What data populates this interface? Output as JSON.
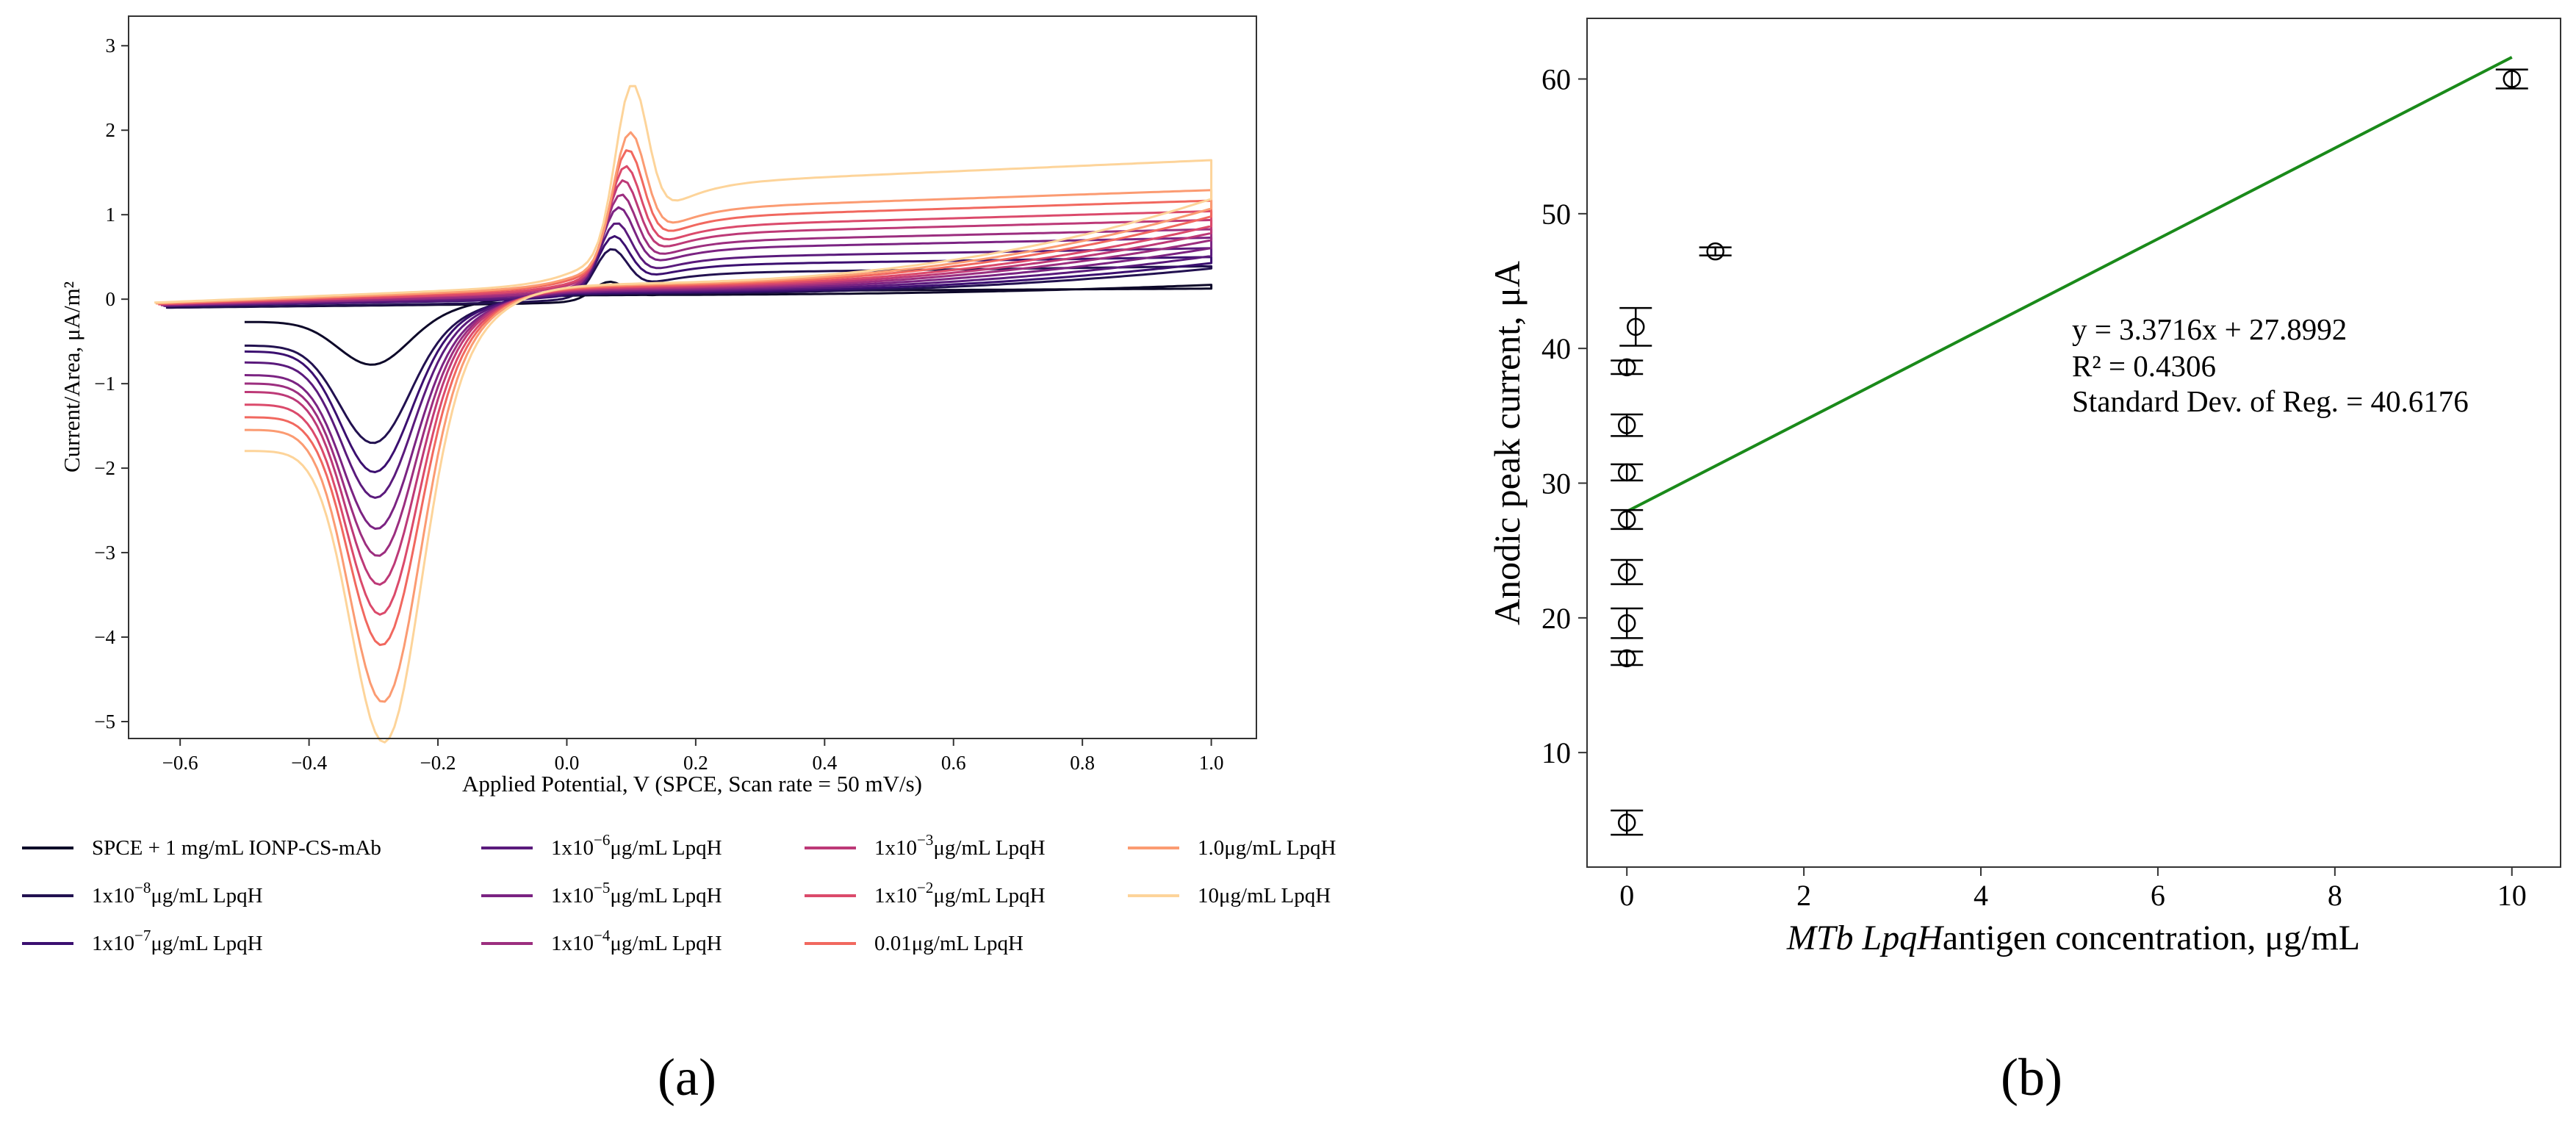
{
  "chart_data": [
    {
      "panel": "(a)",
      "type": "line",
      "xlabel": "Applied Potential, V (SPCE, Scan rate = 50 mV/s)",
      "ylabel": "Current/Area, μA/m²",
      "xlim": [
        -0.68,
        1.07
      ],
      "ylim": [
        -5.2,
        3.35
      ],
      "x_ticks": [
        -0.6,
        -0.4,
        -0.2,
        0.0,
        0.2,
        0.4,
        0.6,
        0.8,
        1.0
      ],
      "x_tick_labels": [
        "−0.6",
        "−0.4",
        "−0.2",
        "0.0",
        "0.2",
        "0.4",
        "0.6",
        "0.8",
        "1.0"
      ],
      "y_ticks": [
        -5,
        -4,
        -3,
        -2,
        -1,
        0,
        1,
        2,
        3
      ],
      "y_tick_labels": [
        "−5",
        "−4",
        "−3",
        "−2",
        "−1",
        "0",
        "1",
        "2",
        "3"
      ],
      "grid": false,
      "legend_position": "below",
      "series": [
        {
          "legend": {
            "pre": "SPCE + 1 mg/mL IONP-CS-mAb",
            "exp": "",
            "post": ""
          },
          "color": "#0d0829",
          "anodic_peak": 0.35,
          "cathodic_peak": -0.7,
          "reverse_start": -0.27,
          "forward_start": -0.1,
          "right_end": 0.22
        },
        {
          "legend": {
            "pre": "1x10",
            "exp": "−8",
            "post": "μg/mL LpqH"
          },
          "color": "#221150",
          "anodic_peak": 0.85,
          "cathodic_peak": -1.55,
          "reverse_start": -0.55,
          "forward_start": -0.1,
          "right_end": 0.4
        },
        {
          "legend": {
            "pre": "1x10",
            "exp": "−7",
            "post": "μg/mL LpqH"
          },
          "color": "#3b0f70",
          "anodic_peak": 1.0,
          "cathodic_peak": -1.88,
          "reverse_start": -0.62,
          "forward_start": -0.08,
          "right_end": 0.45
        },
        {
          "legend": {
            "pre": "1x10",
            "exp": "−6",
            "post": "μg/mL LpqH"
          },
          "color": "#5a1a7c",
          "anodic_peak": 1.18,
          "cathodic_peak": -2.15,
          "reverse_start": -0.75,
          "forward_start": -0.08,
          "right_end": 0.52
        },
        {
          "legend": {
            "pre": "1x10",
            "exp": "−5",
            "post": "μg/mL LpqH"
          },
          "color": "#7b2382",
          "anodic_peak": 1.38,
          "cathodic_peak": -2.48,
          "reverse_start": -0.9,
          "forward_start": -0.07,
          "right_end": 0.6
        },
        {
          "legend": {
            "pre": "1x10",
            "exp": "−4",
            "post": "μg/mL LpqH"
          },
          "color": "#9c2e7f",
          "anodic_peak": 1.55,
          "cathodic_peak": -2.78,
          "reverse_start": -1.0,
          "forward_start": -0.07,
          "right_end": 0.68
        },
        {
          "legend": {
            "pre": "1x10",
            "exp": "−3",
            "post": "μg/mL LpqH"
          },
          "color": "#bd3977",
          "anodic_peak": 1.72,
          "cathodic_peak": -3.1,
          "reverse_start": -1.1,
          "forward_start": -0.06,
          "right_end": 0.75
        },
        {
          "legend": {
            "pre": "1x10",
            "exp": "−2",
            "post": "μg/mL LpqH"
          },
          "color": "#db4a6b",
          "anodic_peak": 1.9,
          "cathodic_peak": -3.42,
          "reverse_start": -1.25,
          "forward_start": -0.06,
          "right_end": 0.82
        },
        {
          "legend": {
            "pre": "0.01μg/mL LpqH",
            "exp": "",
            "post": ""
          },
          "color": "#f1685f",
          "anodic_peak": 2.1,
          "cathodic_peak": -3.75,
          "reverse_start": -1.4,
          "forward_start": -0.05,
          "right_end": 0.92
        },
        {
          "legend": {
            "pre": "1.0μg/mL LpqH",
            "exp": "",
            "post": ""
          },
          "color": "#fb9b72",
          "anodic_peak": 2.32,
          "cathodic_peak": -4.4,
          "reverse_start": -1.55,
          "forward_start": -0.05,
          "right_end": 1.0
        },
        {
          "legend": {
            "pre": "10μg/mL LpqH",
            "exp": "",
            "post": ""
          },
          "color": "#fdd49a",
          "anodic_peak": 2.98,
          "cathodic_peak": -4.82,
          "reverse_start": -1.8,
          "forward_start": -0.04,
          "right_end": 1.1
        }
      ]
    },
    {
      "panel": "(b)",
      "type": "scatter",
      "xlabel_italic": "MTb LpqH",
      "xlabel_rest": "antigen concentration, μg/mL",
      "ylabel": "Anodic peak current, μA",
      "xlim": [
        -0.45,
        10.55
      ],
      "ylim": [
        1.5,
        64.5
      ],
      "x_ticks": [
        0,
        2,
        4,
        6,
        8,
        10
      ],
      "x_tick_labels": [
        "0",
        "2",
        "4",
        "6",
        "8",
        "10"
      ],
      "y_ticks": [
        10,
        20,
        30,
        40,
        50,
        60
      ],
      "y_tick_labels": [
        "10",
        "20",
        "30",
        "40",
        "50",
        "60"
      ],
      "grid": false,
      "points": [
        {
          "x": 0.0,
          "y": 4.8,
          "err": 0.9
        },
        {
          "x": 0.0,
          "y": 17.0,
          "err": 0.5
        },
        {
          "x": 0.0,
          "y": 19.6,
          "err": 1.1
        },
        {
          "x": 0.0,
          "y": 23.4,
          "err": 0.9
        },
        {
          "x": 0.0,
          "y": 27.3,
          "err": 0.7
        },
        {
          "x": 0.0,
          "y": 30.8,
          "err": 0.6
        },
        {
          "x": 0.0,
          "y": 34.3,
          "err": 0.8
        },
        {
          "x": 0.0,
          "y": 38.6,
          "err": 0.5
        },
        {
          "x": 0.1,
          "y": 41.6,
          "err": 1.4
        },
        {
          "x": 1.0,
          "y": 47.2,
          "err": 0.3
        },
        {
          "x": 10.0,
          "y": 60.0,
          "err": 0.7
        }
      ],
      "fit": {
        "slope": 3.3716,
        "intercept": 27.8992,
        "color": "#1a8a1a"
      },
      "annotation": [
        "y = 3.3716x + 27.8992",
        "R² = 0.4306",
        "Standard Dev. of Reg. = 40.6176"
      ]
    }
  ],
  "panel_labels": [
    "(a)",
    "(b)"
  ]
}
